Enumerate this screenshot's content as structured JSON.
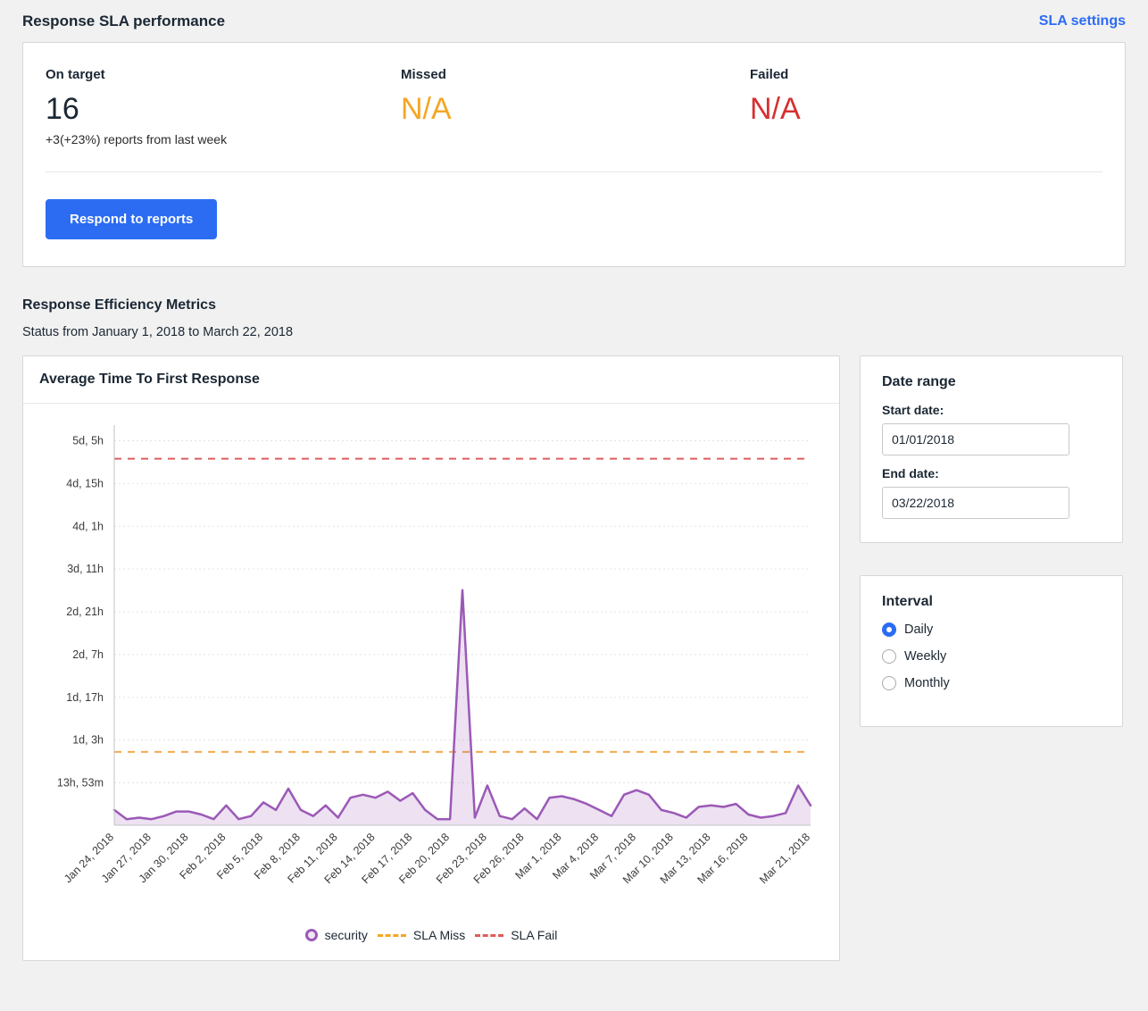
{
  "sla_performance": {
    "title": "Response SLA performance",
    "settings_link": "SLA settings",
    "stats": [
      {
        "label": "On target",
        "value": "16",
        "note": "+3(+23%) reports from last week",
        "color": "#1b2733"
      },
      {
        "label": "Missed",
        "value": "N/A",
        "color": "#f5a623"
      },
      {
        "label": "Failed",
        "value": "N/A",
        "color": "#d63031"
      }
    ],
    "respond_button": "Respond to reports"
  },
  "metrics": {
    "title": "Response Efficiency Metrics",
    "subtitle": "Status from January 1, 2018 to March 22, 2018"
  },
  "date_range": {
    "title": "Date range",
    "start_label": "Start date:",
    "start_value": "01/01/2018",
    "end_label": "End date:",
    "end_value": "03/22/2018"
  },
  "interval": {
    "title": "Interval",
    "options": [
      {
        "label": "Daily",
        "selected": true
      },
      {
        "label": "Weekly",
        "selected": false
      },
      {
        "label": "Monthly",
        "selected": false
      }
    ]
  },
  "chart_data": {
    "type": "area",
    "title": "Average Time To First Response",
    "x_unit": "day",
    "x_start": "Jan 24, 2018",
    "x_end": "Mar 21, 2018",
    "series": [
      {
        "name": "security",
        "color": "#9b59b6",
        "unit": "hours",
        "values": [
          5,
          2,
          2.5,
          2,
          3,
          4.5,
          4.5,
          3.5,
          2,
          6.5,
          2,
          3,
          7.5,
          5,
          12,
          5,
          3,
          6.5,
          2.5,
          9,
          10,
          9,
          11,
          8,
          10.5,
          5,
          2,
          2,
          77,
          2.5,
          13,
          3,
          2,
          5.5,
          2,
          9,
          9.5,
          8.5,
          7,
          5,
          3,
          10,
          11.5,
          10,
          5,
          4,
          2.5,
          6,
          6.5,
          6,
          7,
          3.5,
          2.5,
          3,
          4,
          13,
          6.5
        ]
      }
    ],
    "x_tick_labels": [
      "Jan 24, 2018",
      "Jan 27, 2018",
      "Jan 30, 2018",
      "Feb 2, 2018",
      "Feb 5, 2018",
      "Feb 8, 2018",
      "Feb 11, 2018",
      "Feb 14, 2018",
      "Feb 17, 2018",
      "Feb 20, 2018",
      "Feb 23, 2018",
      "Feb 26, 2018",
      "Mar 1, 2018",
      "Mar 4, 2018",
      "Mar 7, 2018",
      "Mar 10, 2018",
      "Mar 13, 2018",
      "Mar 16, 2018",
      "Mar 21, 2018"
    ],
    "x_tick_indices": [
      0,
      3,
      6,
      9,
      12,
      15,
      18,
      21,
      24,
      27,
      30,
      33,
      36,
      39,
      42,
      45,
      48,
      51,
      56
    ],
    "y_ticks": [
      {
        "label": "13h, 53m",
        "value": 13.88
      },
      {
        "label": "1d, 3h",
        "value": 27.88
      },
      {
        "label": "1d, 17h",
        "value": 41.88
      },
      {
        "label": "2d, 7h",
        "value": 55.88
      },
      {
        "label": "2d, 21h",
        "value": 69.88
      },
      {
        "label": "3d, 11h",
        "value": 83.88
      },
      {
        "label": "4d, 1h",
        "value": 97.88
      },
      {
        "label": "4d, 15h",
        "value": 111.88
      },
      {
        "label": "5d, 5h",
        "value": 125.88
      }
    ],
    "y_domain": [
      0,
      131
    ],
    "grid": true,
    "reference_lines": [
      {
        "name": "SLA Miss",
        "value": 24,
        "color": "#f5a94e",
        "style": "dashed"
      },
      {
        "name": "SLA Fail",
        "value": 120,
        "color": "#e05c5c",
        "style": "dashed"
      }
    ],
    "legend": [
      {
        "label": "security",
        "type": "circle",
        "color": "#9b59b6"
      },
      {
        "label": "SLA Miss",
        "type": "dash",
        "color": "#f5a623"
      },
      {
        "label": "SLA Fail",
        "type": "dash",
        "color": "#e05c5c"
      }
    ],
    "legend_position": "bottom"
  }
}
